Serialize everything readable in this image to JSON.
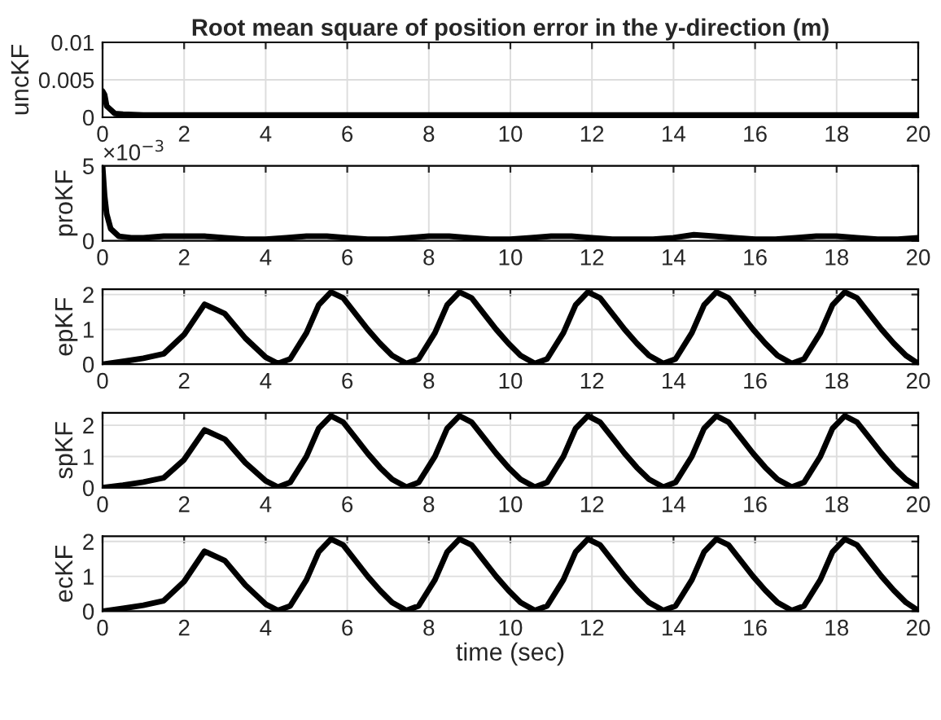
{
  "chart_data": [
    {
      "type": "line",
      "title": "Root mean square of position error in the y-direction (m)",
      "ylabel": "uncKF",
      "grid": true,
      "xlim": [
        0,
        20
      ],
      "xticks": [
        0,
        2,
        4,
        6,
        8,
        10,
        12,
        14,
        16,
        18,
        20
      ],
      "ylim": [
        0,
        0.01
      ],
      "yticks": [
        0,
        0.005,
        0.01
      ],
      "series": [
        {
          "color": "#000000",
          "x": [
            0,
            0.05,
            0.1,
            0.2,
            0.3,
            0.5,
            1,
            2,
            4,
            6,
            8,
            10,
            12,
            14,
            16,
            18,
            20
          ],
          "values": [
            0.0035,
            0.003,
            0.0015,
            0.001,
            0.0005,
            0.0004,
            0.0003,
            0.0003,
            0.0003,
            0.0003,
            0.0003,
            0.0003,
            0.0003,
            0.0003,
            0.0003,
            0.0003,
            0.0003
          ]
        }
      ]
    },
    {
      "type": "line",
      "ylabel": "proKF",
      "grid": true,
      "xlim": [
        0,
        20
      ],
      "xticks": [
        0,
        2,
        4,
        6,
        8,
        10,
        12,
        14,
        16,
        18,
        20
      ],
      "ylim": [
        0,
        5
      ],
      "yticks": [
        0,
        5
      ],
      "annotations": [
        "×10$^{−3}$"
      ],
      "series": [
        {
          "color": "#000000",
          "x": [
            0,
            0.05,
            0.1,
            0.2,
            0.4,
            0.7,
            1,
            1.5,
            2,
            2.5,
            3,
            3.5,
            4,
            4.5,
            5,
            5.5,
            6,
            6.5,
            7,
            7.5,
            8,
            8.5,
            9,
            9.5,
            10,
            10.5,
            11,
            11.5,
            12,
            12.5,
            13,
            13.5,
            14,
            14.5,
            15,
            15.5,
            16,
            16.5,
            17,
            17.5,
            18,
            18.5,
            19,
            19.5,
            20
          ],
          "values": [
            5,
            3,
            1.8,
            0.8,
            0.3,
            0.2,
            0.2,
            0.3,
            0.3,
            0.3,
            0.2,
            0.1,
            0.1,
            0.2,
            0.3,
            0.3,
            0.2,
            0.1,
            0.1,
            0.2,
            0.3,
            0.3,
            0.2,
            0.1,
            0.1,
            0.2,
            0.3,
            0.3,
            0.2,
            0.1,
            0.1,
            0.1,
            0.2,
            0.4,
            0.3,
            0.2,
            0.1,
            0.1,
            0.2,
            0.3,
            0.3,
            0.2,
            0.1,
            0.1,
            0.2
          ]
        }
      ]
    },
    {
      "type": "line",
      "ylabel": "epKF",
      "grid": true,
      "xlim": [
        0,
        20
      ],
      "xticks": [
        0,
        2,
        4,
        6,
        8,
        10,
        12,
        14,
        16,
        18,
        20
      ],
      "ylim": [
        0,
        2.15
      ],
      "yticks": [
        0,
        1,
        2
      ],
      "series": [
        {
          "color": "#000000",
          "x": [
            0,
            0.5,
            1,
            1.5,
            2,
            2.5,
            3,
            3.5,
            4,
            4.3,
            4.6,
            5.0,
            5.3,
            5.6,
            5.9,
            6.2,
            6.5,
            6.8,
            7.1,
            7.45,
            7.75,
            8.15,
            8.45,
            8.75,
            9.05,
            9.35,
            9.65,
            9.95,
            10.25,
            10.6,
            10.9,
            11.3,
            11.6,
            11.9,
            12.2,
            12.5,
            12.8,
            13.1,
            13.4,
            13.75,
            14.05,
            14.45,
            14.75,
            15.05,
            15.35,
            15.65,
            15.95,
            16.25,
            16.55,
            16.9,
            17.2,
            17.6,
            17.9,
            18.2,
            18.5,
            18.8,
            19.1,
            19.4,
            19.7,
            20
          ],
          "values": [
            0,
            0.08,
            0.17,
            0.3,
            0.85,
            1.72,
            1.45,
            0.75,
            0.2,
            0.02,
            0.15,
            0.9,
            1.7,
            2.07,
            1.9,
            1.45,
            1.0,
            0.6,
            0.25,
            0.02,
            0.15,
            0.9,
            1.7,
            2.07,
            1.9,
            1.45,
            1.0,
            0.6,
            0.25,
            0.02,
            0.15,
            0.9,
            1.7,
            2.07,
            1.9,
            1.45,
            1.0,
            0.6,
            0.25,
            0.02,
            0.15,
            0.9,
            1.7,
            2.07,
            1.9,
            1.45,
            1.0,
            0.6,
            0.25,
            0.02,
            0.15,
            0.9,
            1.7,
            2.07,
            1.9,
            1.45,
            1.0,
            0.6,
            0.25,
            0.02
          ]
        }
      ]
    },
    {
      "type": "line",
      "ylabel": "spKF",
      "grid": true,
      "xlim": [
        0,
        20
      ],
      "xticks": [
        0,
        2,
        4,
        6,
        8,
        10,
        12,
        14,
        16,
        18,
        20
      ],
      "ylim": [
        0,
        2.4
      ],
      "yticks": [
        0,
        1,
        2
      ],
      "series": [
        {
          "color": "#000000",
          "x": [
            0,
            0.5,
            1,
            1.5,
            2,
            2.5,
            3,
            3.5,
            4,
            4.3,
            4.6,
            5.0,
            5.3,
            5.6,
            5.9,
            6.2,
            6.5,
            6.8,
            7.1,
            7.45,
            7.75,
            8.15,
            8.45,
            8.75,
            9.05,
            9.35,
            9.65,
            9.95,
            10.25,
            10.6,
            10.9,
            11.3,
            11.6,
            11.9,
            12.2,
            12.5,
            12.8,
            13.1,
            13.4,
            13.75,
            14.05,
            14.45,
            14.75,
            15.05,
            15.35,
            15.65,
            15.95,
            16.25,
            16.55,
            16.9,
            17.2,
            17.6,
            17.9,
            18.2,
            18.5,
            18.8,
            19.1,
            19.4,
            19.7,
            20
          ],
          "values": [
            0,
            0.08,
            0.18,
            0.32,
            0.9,
            1.85,
            1.55,
            0.8,
            0.22,
            0.02,
            0.17,
            1.0,
            1.9,
            2.3,
            2.1,
            1.6,
            1.1,
            0.65,
            0.27,
            0.02,
            0.17,
            1.0,
            1.9,
            2.3,
            2.1,
            1.6,
            1.1,
            0.65,
            0.27,
            0.02,
            0.17,
            1.0,
            1.9,
            2.3,
            2.1,
            1.6,
            1.1,
            0.65,
            0.27,
            0.02,
            0.17,
            1.0,
            1.9,
            2.3,
            2.1,
            1.6,
            1.1,
            0.65,
            0.27,
            0.02,
            0.17,
            1.0,
            1.9,
            2.3,
            2.1,
            1.6,
            1.1,
            0.65,
            0.27,
            0.02
          ]
        }
      ]
    },
    {
      "type": "line",
      "ylabel": "ecKF",
      "xlabel": "time (sec)",
      "grid": true,
      "xlim": [
        0,
        20
      ],
      "xticks": [
        0,
        2,
        4,
        6,
        8,
        10,
        12,
        14,
        16,
        18,
        20
      ],
      "ylim": [
        0,
        2.15
      ],
      "yticks": [
        0,
        1,
        2
      ],
      "series": [
        {
          "color": "#000000",
          "x": [
            0,
            0.5,
            1,
            1.5,
            2,
            2.5,
            3,
            3.5,
            4,
            4.3,
            4.6,
            5.0,
            5.3,
            5.6,
            5.9,
            6.2,
            6.5,
            6.8,
            7.1,
            7.45,
            7.75,
            8.15,
            8.45,
            8.75,
            9.05,
            9.35,
            9.65,
            9.95,
            10.25,
            10.6,
            10.9,
            11.3,
            11.6,
            11.9,
            12.2,
            12.5,
            12.8,
            13.1,
            13.4,
            13.75,
            14.05,
            14.45,
            14.75,
            15.05,
            15.35,
            15.65,
            15.95,
            16.25,
            16.55,
            16.9,
            17.2,
            17.6,
            17.9,
            18.2,
            18.5,
            18.8,
            19.1,
            19.4,
            19.7,
            20
          ],
          "values": [
            0,
            0.08,
            0.17,
            0.3,
            0.85,
            1.72,
            1.45,
            0.75,
            0.2,
            0.02,
            0.15,
            0.9,
            1.7,
            2.07,
            1.9,
            1.45,
            1.0,
            0.6,
            0.25,
            0.02,
            0.15,
            0.9,
            1.7,
            2.07,
            1.9,
            1.45,
            1.0,
            0.6,
            0.25,
            0.02,
            0.15,
            0.9,
            1.7,
            2.07,
            1.9,
            1.45,
            1.0,
            0.6,
            0.25,
            0.02,
            0.15,
            0.9,
            1.7,
            2.07,
            1.9,
            1.45,
            1.0,
            0.6,
            0.25,
            0.02,
            0.15,
            0.9,
            1.7,
            2.07,
            1.9,
            1.45,
            1.0,
            0.6,
            0.25,
            0.02
          ]
        }
      ]
    }
  ]
}
